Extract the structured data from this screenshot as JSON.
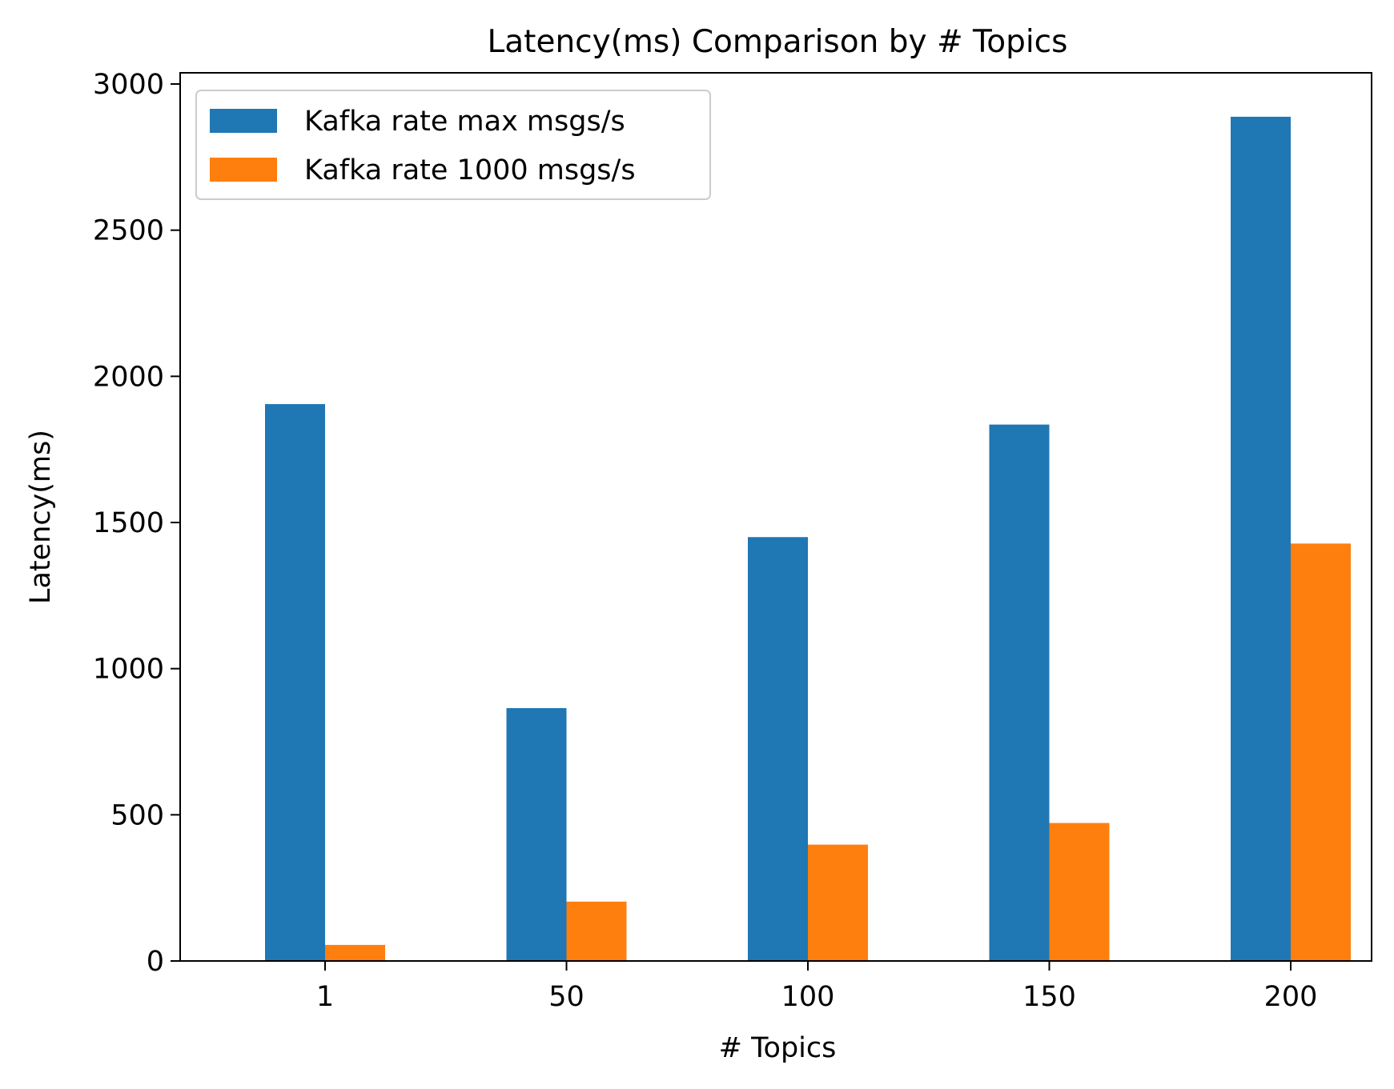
{
  "chart_data": {
    "type": "bar",
    "title": "Latency(ms) Comparison by # Topics",
    "xlabel": "# Topics",
    "ylabel": "Latency(ms)",
    "categories": [
      "1",
      "50",
      "100",
      "150",
      "200"
    ],
    "series": [
      {
        "name": "Kafka rate max msgs/s",
        "color": "#1f77b4",
        "values": [
          1905,
          865,
          1450,
          1835,
          2888
        ]
      },
      {
        "name": "Kafka rate 1000 msgs/s",
        "color": "#ff7f0e",
        "values": [
          55,
          203,
          398,
          472,
          1428
        ]
      }
    ],
    "ylim": [
      0,
      3000
    ],
    "yticks": [
      0,
      500,
      1000,
      1500,
      2000,
      2500,
      3000
    ],
    "grid": false,
    "legend": "top-left"
  }
}
